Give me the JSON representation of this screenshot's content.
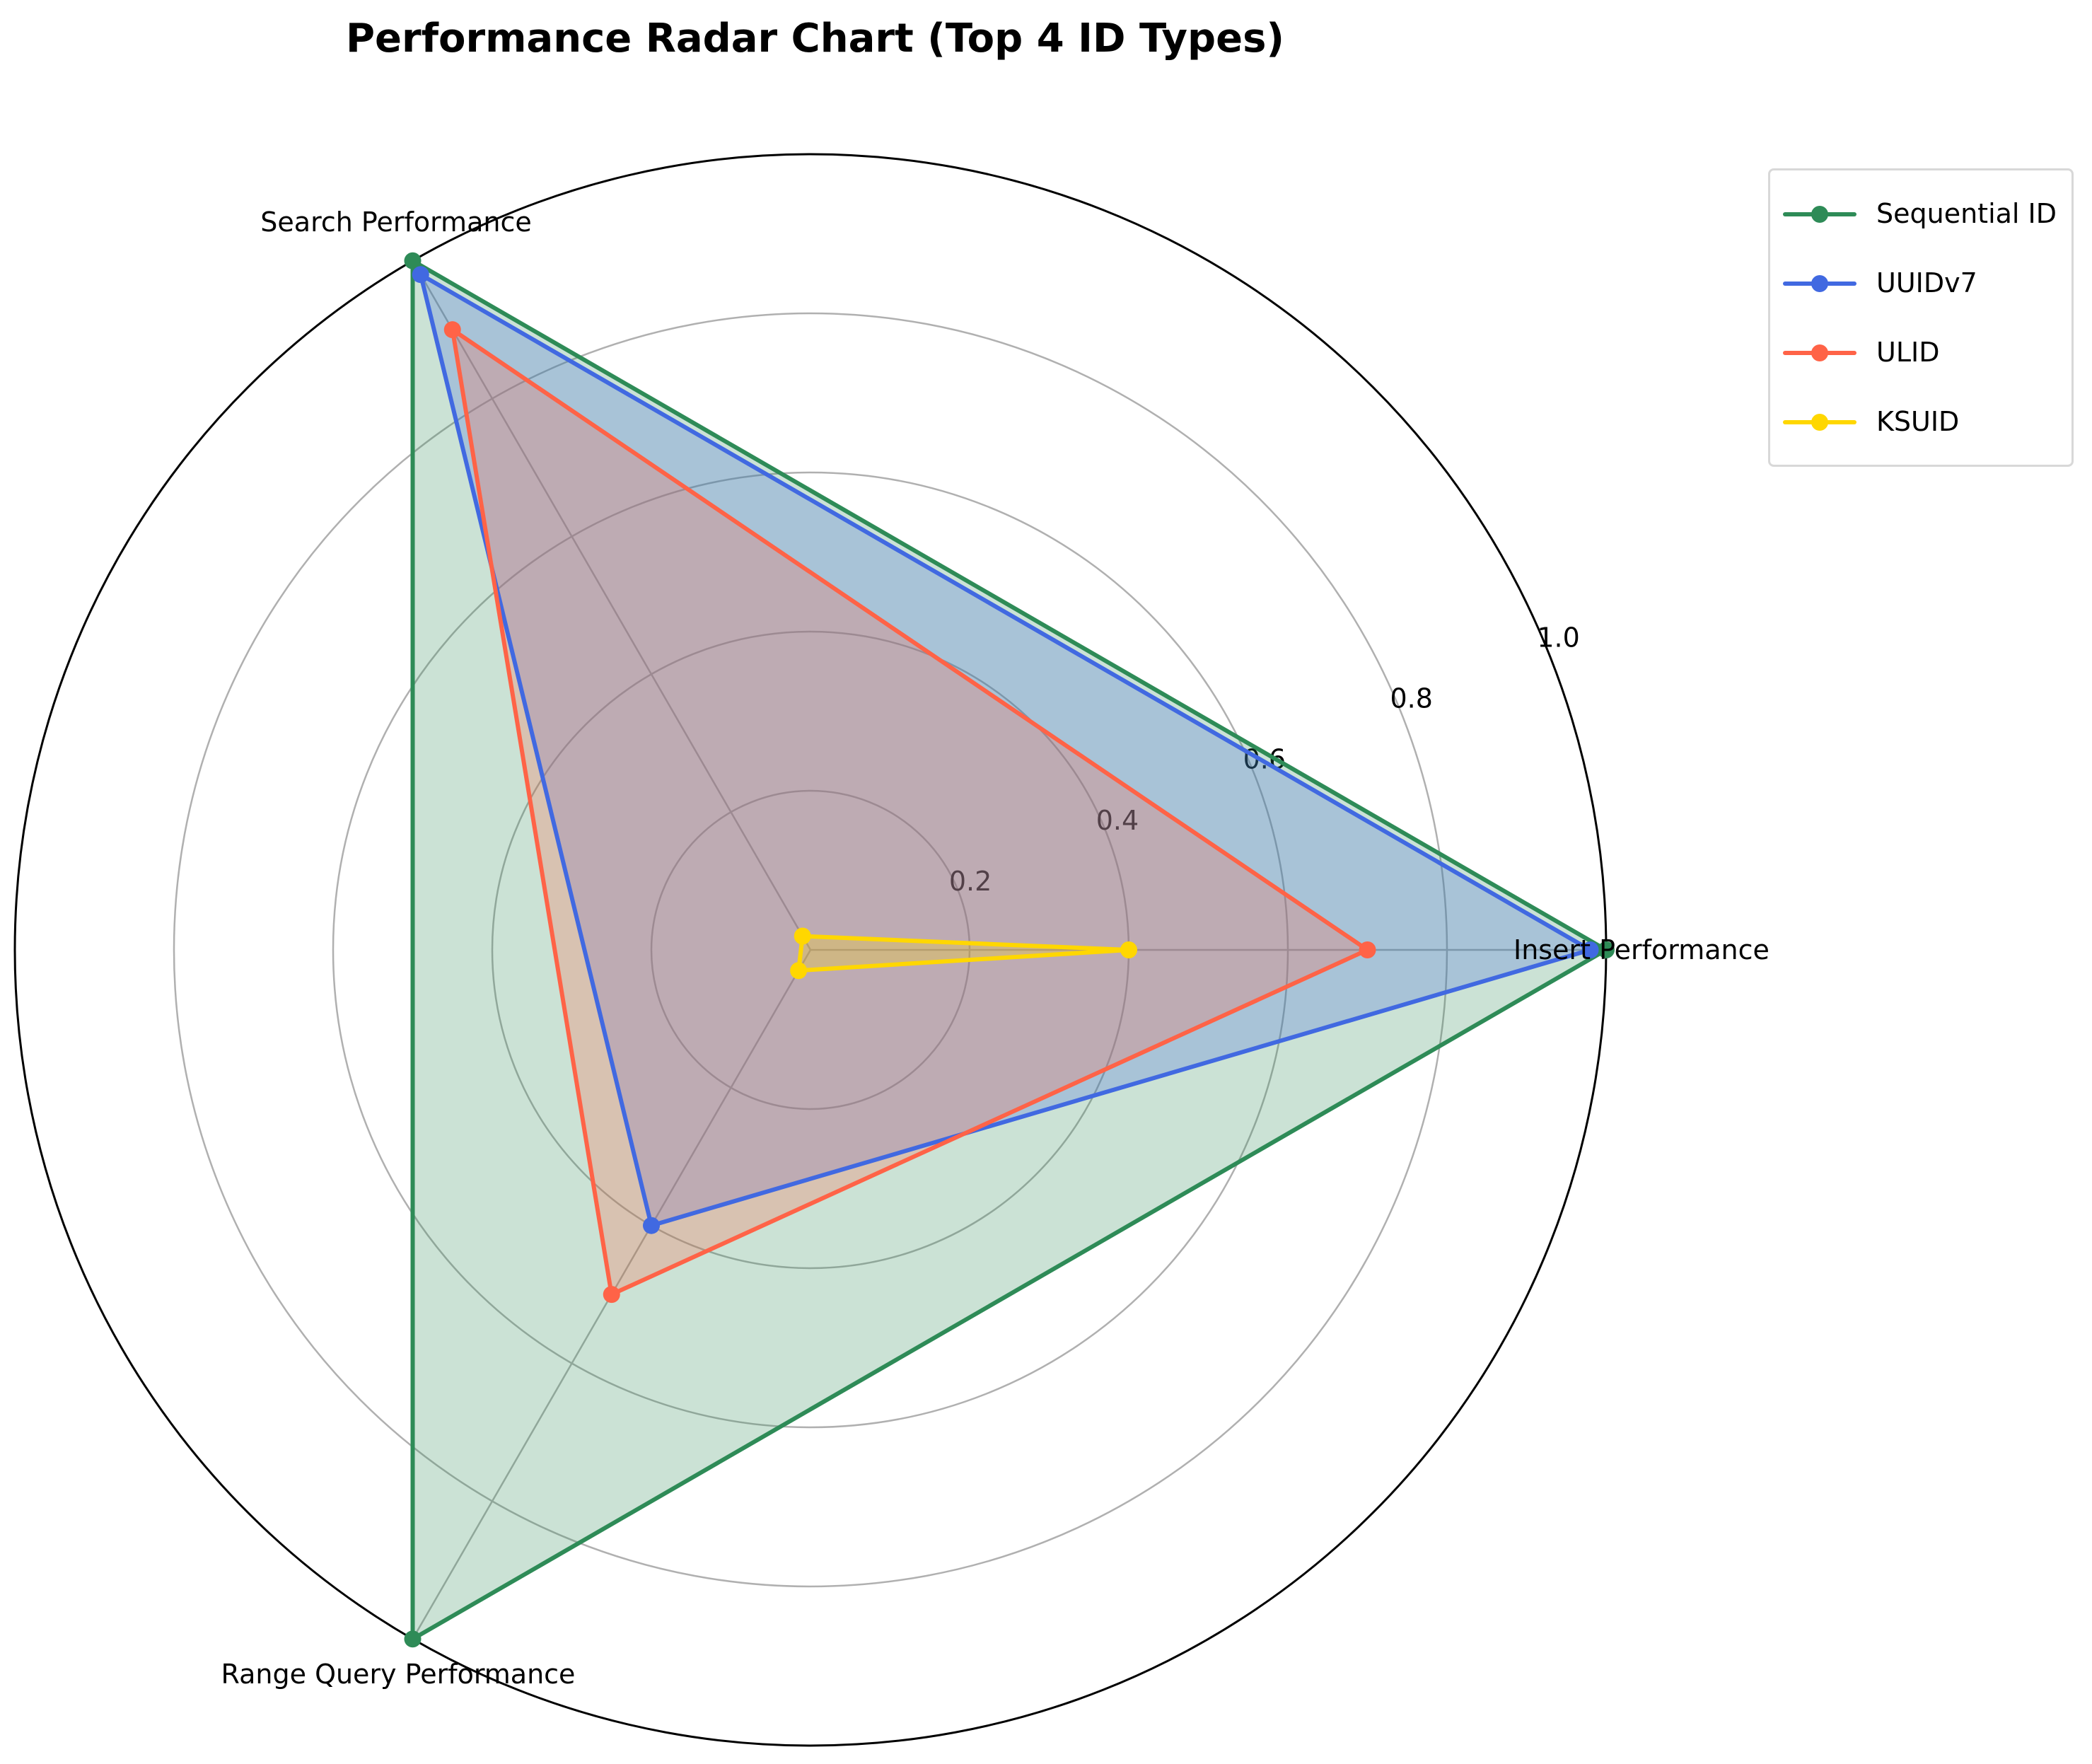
{
  "chart_data": {
    "type": "radar",
    "title": "Performance Radar Chart (Top 4 ID Types)",
    "categories": [
      "Insert Performance",
      "Search Performance",
      "Range Query Performance"
    ],
    "rlim": [
      0,
      1.0
    ],
    "rticks": [
      "0.2",
      "0.4",
      "0.6",
      "0.8",
      "1.0"
    ],
    "rtick_values": [
      0.2,
      0.4,
      0.6,
      0.8,
      1.0
    ],
    "grid": true,
    "legend_position": "top-right",
    "series": [
      {
        "name": "Sequential ID",
        "color": "#2e8b57",
        "values": [
          1.0,
          1.0,
          1.0
        ]
      },
      {
        "name": "UUIDv7",
        "color": "#4169e1",
        "values": [
          0.98,
          0.98,
          0.4
        ]
      },
      {
        "name": "ULID",
        "color": "#ff6347",
        "values": [
          0.7,
          0.9,
          0.5
        ]
      },
      {
        "name": "KSUID",
        "color": "#ffd700",
        "values": [
          0.4,
          0.02,
          0.03
        ]
      }
    ]
  }
}
